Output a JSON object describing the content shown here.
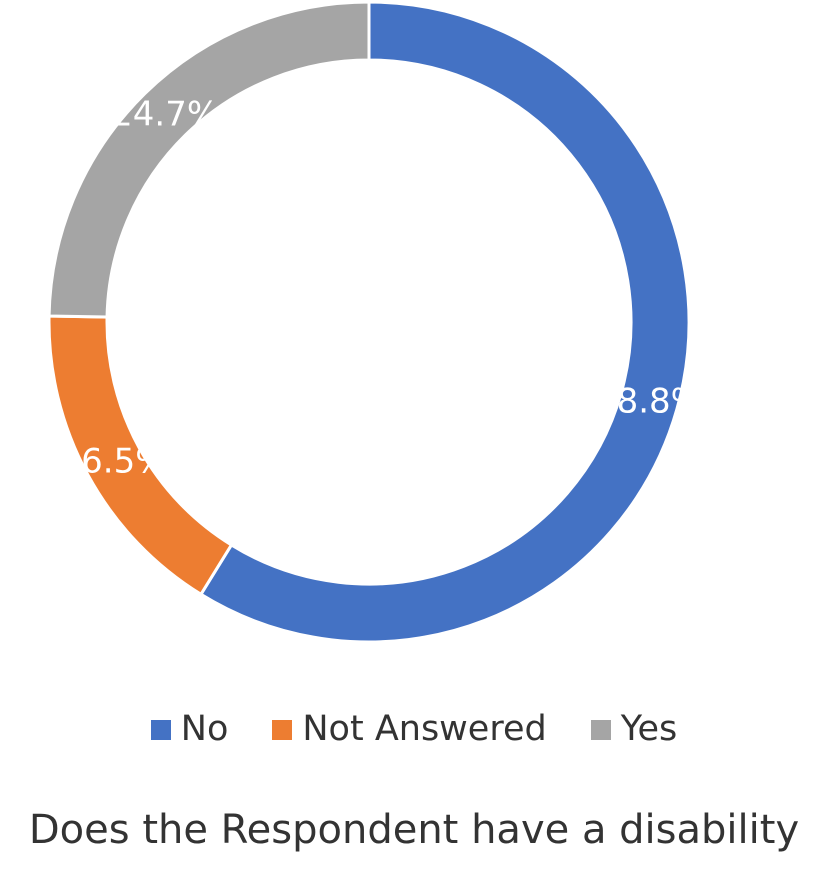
{
  "chart_data": {
    "type": "pie",
    "variant": "donut",
    "title": "Does the Respondent have a disability",
    "legend_position": "bottom",
    "categories": [
      "No",
      "Not Answered",
      "Yes"
    ],
    "values": [
      58.8,
      16.5,
      24.7
    ],
    "value_labels": [
      "58.8%",
      "16.5%",
      "24.7%"
    ],
    "colors": [
      "#4472C4",
      "#ED7D31",
      "#A5A5A5"
    ],
    "label_color": "#FFFFFF"
  }
}
